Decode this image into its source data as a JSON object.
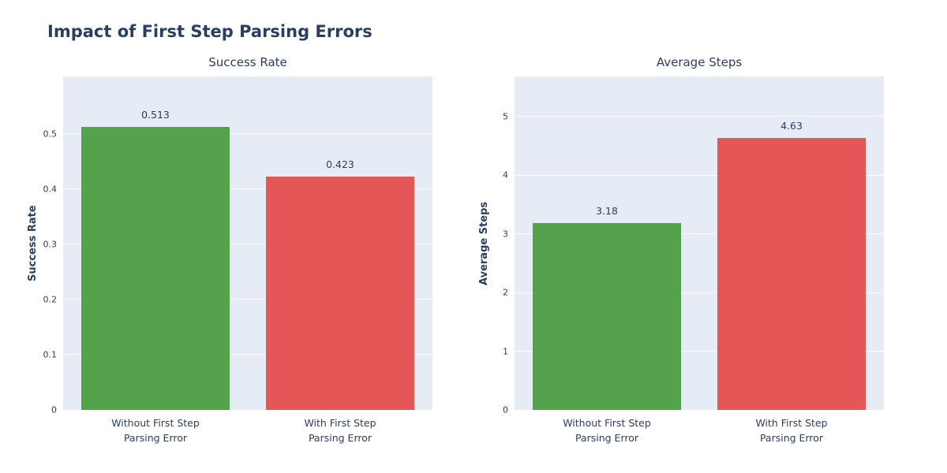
{
  "figure": {
    "title": "Impact of First Step Parsing Errors"
  },
  "colors": {
    "text": "#2a3f5f",
    "background": "#ffffff",
    "plot_bg": "#e5ecf6",
    "grid": "#ffffff",
    "bar_green": "#54a24b",
    "bar_red": "#e45756"
  },
  "chart_data": [
    {
      "type": "bar",
      "title": "Success Rate",
      "xlabel": "",
      "ylabel": "Success Rate",
      "categories": [
        "Without First Step\nParsing Error",
        "With First Step\nParsing Error"
      ],
      "values": [
        0.513,
        0.423
      ],
      "value_labels": [
        "0.513",
        "0.423"
      ],
      "bar_colors": [
        "#54a24b",
        "#e45756"
      ],
      "yticks": [
        0,
        0.1,
        0.2,
        0.3,
        0.4,
        0.5
      ],
      "ytick_labels": [
        "0",
        "0.1",
        "0.2",
        "0.3",
        "0.4",
        "0.5"
      ],
      "ylim": [
        0,
        0.604
      ],
      "grid": true,
      "legend_position": "none"
    },
    {
      "type": "bar",
      "title": "Average Steps",
      "xlabel": "",
      "ylabel": "Average Steps",
      "categories": [
        "Without First Step\nParsing Error",
        "With First Step\nParsing Error"
      ],
      "values": [
        3.18,
        4.63
      ],
      "value_labels": [
        "3.18",
        "4.63"
      ],
      "bar_colors": [
        "#54a24b",
        "#e45756"
      ],
      "yticks": [
        0,
        1,
        2,
        3,
        4,
        5
      ],
      "ytick_labels": [
        "0",
        "1",
        "2",
        "3",
        "4",
        "5"
      ],
      "ylim": [
        0,
        5.685
      ],
      "grid": true,
      "legend_position": "none"
    }
  ]
}
